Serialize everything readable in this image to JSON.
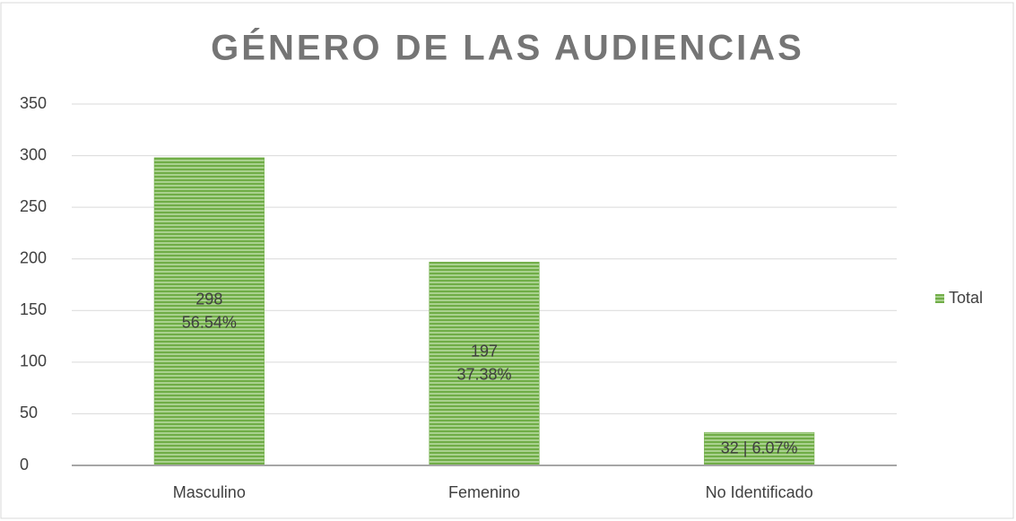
{
  "chart_data": {
    "type": "bar",
    "title": "GÉNERO DE LAS AUDIENCIAS",
    "categories": [
      "Masculino",
      "Femenino",
      "No Identificado"
    ],
    "series": [
      {
        "name": "Total",
        "color": "#70ad47",
        "values": [
          298,
          197,
          32
        ],
        "value_labels": [
          "298\n56.54%",
          "197\n37.38%",
          "32 | 6.07%"
        ]
      }
    ],
    "ylim": [
      0,
      350
    ],
    "yticks": [
      0,
      50,
      100,
      150,
      200,
      250,
      300,
      350
    ],
    "grid": true,
    "legend": "right"
  }
}
